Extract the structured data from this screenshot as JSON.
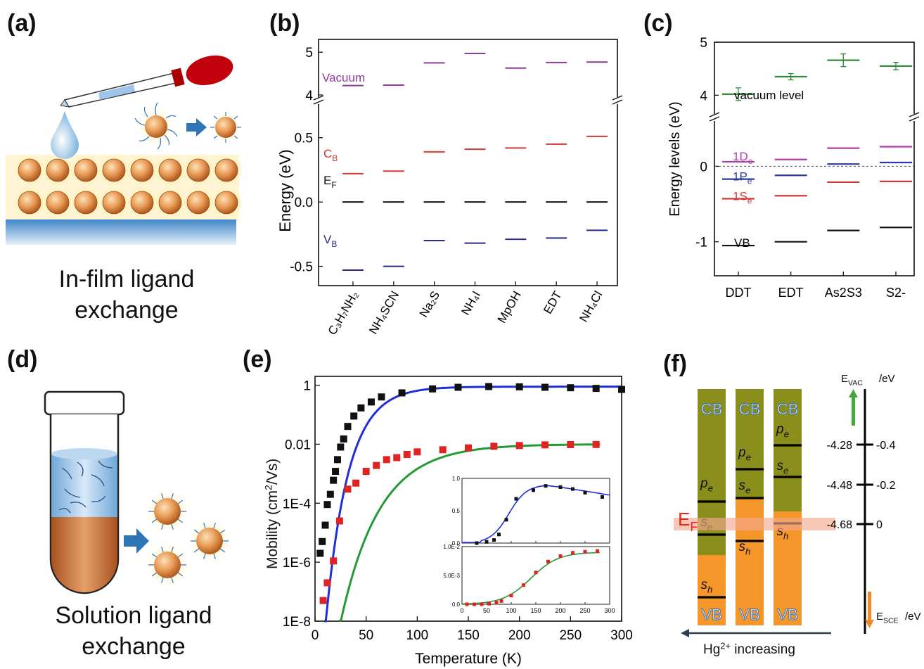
{
  "panels": {
    "a": {
      "label": "(a)",
      "caption_line1": "In-film ligand",
      "caption_line2": "exchange"
    },
    "b": {
      "label": "(b)"
    },
    "c": {
      "label": "(c)"
    },
    "d": {
      "label": "(d)",
      "caption_line1": "Solution ligand",
      "caption_line2": "exchange"
    },
    "e": {
      "label": "(e)"
    },
    "f": {
      "label": "(f)"
    }
  },
  "chart_data": [
    {
      "panel": "b",
      "type": "scatter",
      "ylabel": "Energy (eV)",
      "categories": [
        "C3H7NH2",
        "NH4SCN",
        "Na2S",
        "NH4I",
        "MpOH",
        "EDT",
        "NH4Cl"
      ],
      "category_labels": [
        "C₃H₇NH₂",
        "NH₄SCN",
        "Na₂S",
        "NH₄I",
        "MpOH",
        "EDT",
        "NH₄Cl"
      ],
      "y_ticks_lower": [
        "-0.5",
        "0.0",
        "0.5"
      ],
      "y_ticks_upper": [
        "4",
        "5"
      ],
      "ylim_lower": [
        -0.65,
        0.75
      ],
      "ylim_upper": [
        4.0,
        5.3
      ],
      "axis_break": true,
      "level_labels": {
        "vacuum": "Vacuum",
        "cb": "C",
        "cb_sub": "B",
        "ef": "E",
        "ef_sub": "F",
        "vb": "V",
        "vb_sub": "B"
      },
      "series": [
        {
          "name": "Vacuum",
          "color": "#8e3a9c",
          "values": [
            4.22,
            4.23,
            4.75,
            4.97,
            4.63,
            4.76,
            4.77
          ]
        },
        {
          "name": "CB",
          "color": "#d23a3a",
          "values": [
            0.22,
            0.24,
            0.39,
            0.41,
            0.42,
            0.45,
            0.51
          ]
        },
        {
          "name": "EF",
          "color": "#111111",
          "values": [
            0.0,
            0.0,
            0.0,
            0.0,
            0.0,
            0.0,
            0.0
          ]
        },
        {
          "name": "VB",
          "color": "#2a2a8e",
          "values": [
            -0.53,
            -0.5,
            -0.3,
            -0.32,
            -0.29,
            -0.28,
            -0.22
          ]
        }
      ]
    },
    {
      "panel": "c",
      "type": "scatter",
      "ylabel": "Energy levels (eV)",
      "categories": [
        "DDT",
        "EDT",
        "As2S3",
        "S2-"
      ],
      "y_ticks_lower": [
        "-1",
        "0"
      ],
      "y_ticks_upper": [
        "4",
        "5"
      ],
      "ylim_lower": [
        -1.45,
        0.6
      ],
      "ylim_upper": [
        3.7,
        5.0
      ],
      "axis_break": true,
      "level_labels": {
        "vac": "vacuum level",
        "d": "1D",
        "d_sub": "e",
        "p": "1P",
        "p_sub": "e",
        "s": "1S",
        "s_sub": "e",
        "vb": "VB"
      },
      "series": [
        {
          "name": "vacuum level",
          "color": "#2e8b3a",
          "values": [
            4.02,
            4.35,
            4.66,
            4.55
          ],
          "errors": [
            0.12,
            0.06,
            0.12,
            0.07
          ]
        },
        {
          "name": "1De",
          "color": "#b03aa6",
          "values": [
            0.06,
            0.09,
            0.24,
            0.26
          ]
        },
        {
          "name": "1Pe",
          "color": "#2a3a9c",
          "values": [
            -0.17,
            -0.12,
            0.03,
            0.05
          ]
        },
        {
          "name": "1Se",
          "color": "#d23a3a",
          "values": [
            -0.43,
            -0.39,
            -0.21,
            -0.2
          ]
        },
        {
          "name": "VB",
          "color": "#111111",
          "values": [
            -1.05,
            -1.0,
            -0.85,
            -0.81
          ]
        }
      ]
    },
    {
      "panel": "e",
      "type": "scatter",
      "xlabel": "Temperature (K)",
      "ylabel": "Mobility (cm²/Vs)",
      "ylabel_main": "Mobility (cm",
      "ylabel_sup": "2",
      "ylabel_end": "/Vs)",
      "x_ticks": [
        "0",
        "50",
        "100",
        "150",
        "200",
        "250",
        "300"
      ],
      "y_ticks": [
        "1E-8",
        "1E-6",
        "1E-4",
        "0.01",
        "1"
      ],
      "xlim": [
        0,
        300
      ],
      "ylim_log10": [
        -8,
        0.3
      ],
      "series": [
        {
          "name": "black squares",
          "color": "#111111",
          "x": [
            5,
            7,
            10,
            12,
            15,
            18,
            20,
            22,
            25,
            28,
            32,
            38,
            45,
            55,
            65,
            85,
            115,
            140,
            170,
            200,
            225,
            250,
            275,
            300
          ],
          "y": [
            2e-06,
            5e-06,
            1.8e-05,
            9e-05,
            0.0002,
            0.0006,
            0.0012,
            0.003,
            0.008,
            0.015,
            0.04,
            0.09,
            0.17,
            0.27,
            0.4,
            0.55,
            0.75,
            0.85,
            0.9,
            0.88,
            0.85,
            0.82,
            0.78,
            0.72
          ]
        },
        {
          "name": "red squares",
          "color": "#e02424",
          "x": [
            8,
            12,
            18,
            24,
            32,
            40,
            50,
            60,
            70,
            80,
            90,
            100,
            125,
            150,
            175,
            200,
            225,
            250,
            275
          ],
          "y": [
            5e-08,
            2e-07,
            1.1e-06,
            2.5e-05,
            0.0003,
            0.00048,
            0.0012,
            0.0019,
            0.003,
            0.0035,
            0.0045,
            0.0055,
            0.0065,
            0.0075,
            0.0085,
            0.009,
            0.0095,
            0.0097,
            0.0098
          ]
        },
        {
          "name": "blue fit",
          "color": "#1f2fd8",
          "type": "line"
        },
        {
          "name": "green fit",
          "color": "#239b33",
          "type": "line"
        }
      ],
      "insets": [
        {
          "x_ticks": [
            "0",
            "50",
            "100",
            "150",
            "200",
            "250",
            "300"
          ],
          "y_ticks": [
            "0.0",
            "0.5",
            "1.0"
          ]
        },
        {
          "x_ticks": [
            "0",
            "50",
            "100",
            "150",
            "200",
            "250",
            "300"
          ],
          "y_ticks": [
            "0.0",
            "5.0E-3",
            "1.0E-2"
          ]
        }
      ]
    },
    {
      "panel": "f",
      "type": "diagram",
      "bars": [
        {
          "top": "CB",
          "bottom": "VB",
          "levels": [
            "p_e",
            "s_e",
            "s_h"
          ]
        },
        {
          "top": "CB",
          "bottom": "VB",
          "levels": [
            "p_e",
            "s_e",
            "s_h"
          ]
        },
        {
          "top": "CB",
          "bottom": "VB",
          "levels": [
            "p_e",
            "s_e",
            "s_h"
          ]
        }
      ],
      "fermi_label": "E",
      "fermi_sub": "F",
      "vac_axis": {
        "label": "E",
        "label_sub": "VAC",
        "label_unit": "/eV",
        "ticks": [
          "-4.28",
          "-4.48",
          "-4.68"
        ]
      },
      "sce_axis": {
        "label": "E",
        "label_sub": "SCE",
        "label_unit": "/eV",
        "ticks": [
          "-0.4",
          "-0.2",
          "0"
        ]
      },
      "arrow_label": "Hg",
      "arrow_sup": "2+",
      "arrow_end": " increasing",
      "sym_p": "p",
      "sym_s": "s",
      "sub_e": "e",
      "sub_h": "h",
      "colors": {
        "cb": "#8a8f1c",
        "vb": "#f5962a",
        "fermi": "#f4a98e",
        "arrow": "#2c3e50"
      }
    }
  ]
}
